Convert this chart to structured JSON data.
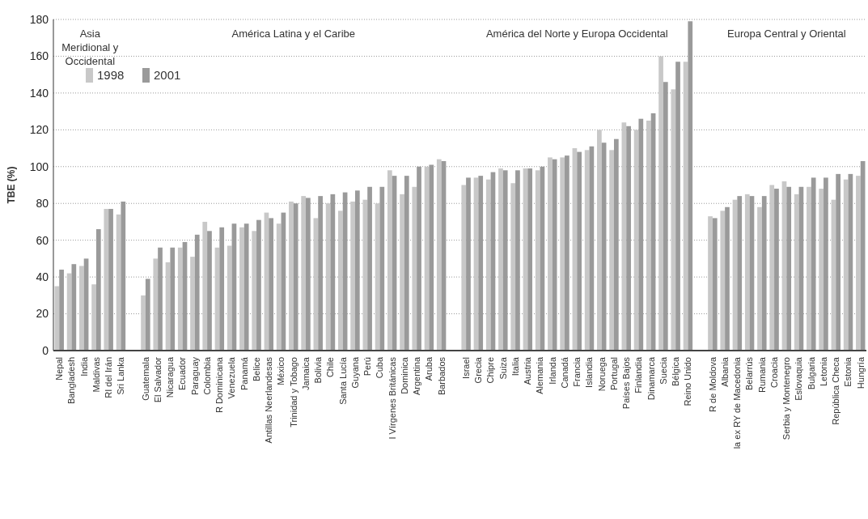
{
  "chart_data": {
    "type": "bar",
    "ylabel": "TBE (%)",
    "categories": [
      "Nepal",
      "Bangladesh",
      "India",
      "Maldivas",
      "RI del Irán",
      "Sri Lanka",
      null,
      "Guatemala",
      "El Salvador",
      "Nicaragua",
      "Ecuador",
      "Paraguay",
      "Colombia",
      "R Dominicana",
      "Venezuela",
      "Panamá",
      "Belice",
      "Antillas Neerlandesas",
      "México",
      "Trinidad y Tobago",
      "Jamaica",
      "Bolivia",
      "Chile",
      "Santa Lucía",
      "Guyana",
      "Perú",
      "Cuba",
      "I Vírgenes Británicas",
      "Dominica",
      "Argentina",
      "Aruba",
      "Barbados",
      null,
      "Israel",
      "Grecia",
      "Chipre",
      "Suiza",
      "Italia",
      "Austria",
      "Alemania",
      "Irlanda",
      "Canadá",
      "Francia",
      "Islandia",
      "Noruega",
      "Portugal",
      "Países Bajos",
      "Finlandia",
      "Dinamarca",
      "Suecia",
      "Bélgica",
      "Reino Unido",
      null,
      "R de Moldova",
      "Albania",
      "la ex RY de Macedonia",
      "Belarrús",
      "Rumania",
      "Croacia",
      "Serbia y Montenegro",
      "Eslovaquia",
      "Bulgaria",
      "Letonia",
      "República Checa",
      "Estonia",
      "Hungría"
    ],
    "series": [
      {
        "name": "1998",
        "color": "#c8c8c8",
        "values": [
          35,
          42,
          46,
          36,
          77,
          74,
          null,
          30,
          50,
          48,
          56,
          51,
          70,
          56,
          57,
          67,
          65,
          75,
          69,
          81,
          84,
          72,
          80,
          76,
          81,
          82,
          80,
          98,
          85,
          89,
          100,
          104,
          null,
          90,
          94,
          93,
          99,
          91,
          99,
          98,
          105,
          105,
          110,
          109,
          120,
          109,
          124,
          120,
          125,
          160,
          142,
          157,
          null,
          73,
          76,
          82,
          85,
          78,
          90,
          92,
          85,
          89,
          88,
          82,
          93,
          95
        ]
      },
      {
        "name": "2001",
        "color": "#9a9a9a",
        "values": [
          44,
          47,
          50,
          66,
          77,
          81,
          null,
          39,
          56,
          56,
          59,
          63,
          65,
          67,
          69,
          69,
          71,
          72,
          75,
          80,
          83,
          84,
          85,
          86,
          87,
          89,
          89,
          95,
          95,
          100,
          101,
          103,
          null,
          94,
          95,
          97,
          98,
          98,
          99,
          100,
          104,
          106,
          108,
          111,
          113,
          115,
          122,
          126,
          129,
          146,
          157,
          179,
          null,
          72,
          78,
          84,
          84,
          84,
          88,
          89,
          89,
          94,
          94,
          96,
          96,
          103
        ]
      }
    ],
    "ylim": [
      0,
      180
    ],
    "yticks": [
      0,
      20,
      40,
      60,
      80,
      100,
      120,
      140,
      160,
      180
    ],
    "grid": "y",
    "legend": "top left",
    "annotations": [
      "Asia Meridional y Occidental",
      "América Latina y el Caribe",
      "América del Norte y Europa Occidental",
      "Europa Central y Oriental"
    ]
  }
}
